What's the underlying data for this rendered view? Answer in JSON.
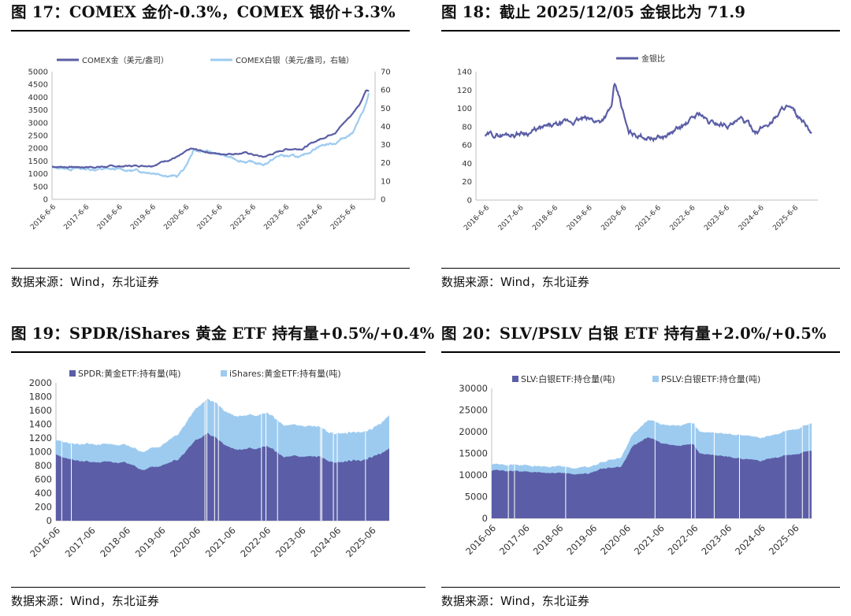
{
  "colors": {
    "dark": "#5B5EA6",
    "light": "#9DCBF0",
    "axis": "#bfbfbf",
    "text": "#333333"
  },
  "source_text": "数据来源：Wind，东北证券",
  "x_dates": [
    "2016-6-6",
    "2017-6-6",
    "2018-6-6",
    "2019-6-6",
    "2020-6-6",
    "2021-6-6",
    "2022-6-6",
    "2023-6-6",
    "2024-6-6",
    "2025-6-6"
  ],
  "x_months": [
    "2016-06",
    "2017-06",
    "2018-06",
    "2019-06",
    "2020-06",
    "2021-06",
    "2022-06",
    "2023-06",
    "2024-06",
    "2025-06"
  ],
  "charts": {
    "c17": {
      "title": "图 17：COMEX 金价-0.3%，COMEX 银价+3.3%",
      "legend": [
        "COMEX金（美元/盎司）",
        "COMEX白银（美元/盎司，右轴）"
      ]
    },
    "c18": {
      "title": "图 18：截止 2025/12/05 金银比为 71.9",
      "legend": [
        "金银比"
      ]
    },
    "c19": {
      "title": "图 19：SPDR/iShares 黄金 ETF 持有量+0.5%/+0.4%",
      "legend": [
        "SPDR:黄金ETF:持有量(吨)",
        "iShares:黄金ETF:持有量(吨)"
      ]
    },
    "c20": {
      "title": "图 20：SLV/PSLV 白银 ETF 持有量+2.0%/+0.5%",
      "legend": [
        "SLV:白银ETF:持仓量(吨)",
        "PSLV:白银ETF:持仓量(吨)"
      ]
    }
  },
  "chart_data": [
    {
      "type": "line",
      "title": "COMEX 金价-0.3%，COMEX 银价+3.3%",
      "x": [
        "2016-06",
        "2017-06",
        "2018-06",
        "2019-06",
        "2020-06",
        "2021-06",
        "2022-06",
        "2023-06",
        "2024-06",
        "2025-06",
        "2025-09",
        "2025-10",
        "2025-12"
      ],
      "series": [
        {
          "name": "COMEX金（美元/盎司）",
          "axis": "left",
          "values": [
            1280,
            1270,
            1280,
            1340,
            1760,
            1780,
            1830,
            1960,
            2330,
            3330,
            3800,
            4300,
            4240
          ]
        },
        {
          "name": "COMEX白银（美元/盎司，右轴）",
          "axis": "right",
          "values": [
            17.3,
            16.7,
            16.5,
            15.0,
            18.0,
            26.5,
            21.0,
            23.5,
            29.5,
            36.5,
            45.0,
            50.0,
            58.0
          ]
        }
      ],
      "ylim_left": [
        0,
        5000
      ],
      "yticks_left": [
        0,
        500,
        1000,
        1500,
        2000,
        2500,
        3000,
        3500,
        4000,
        4500,
        5000
      ],
      "ylim_right": [
        0,
        70
      ],
      "yticks_right": [
        0,
        10,
        20,
        30,
        40,
        50,
        60,
        70
      ]
    },
    {
      "type": "line",
      "title": "截止 2025/12/05 金银比为 71.9",
      "x": [
        "2016-06",
        "2017-06",
        "2018-06",
        "2019-06",
        "2020-03",
        "2020-06",
        "2020-09",
        "2021-06",
        "2022-06",
        "2022-09",
        "2023-06",
        "2024-06",
        "2025-04",
        "2025-06",
        "2025-12"
      ],
      "series": [
        {
          "name": "金银比",
          "values": [
            70,
            72,
            78,
            89,
            125,
            95,
            70,
            68,
            82,
            94,
            82,
            86,
            105,
            92,
            71.9
          ]
        }
      ],
      "ylim": [
        0,
        140
      ],
      "yticks": [
        0,
        20,
        40,
        60,
        80,
        100,
        120,
        140
      ]
    },
    {
      "type": "area",
      "stacked": true,
      "title": "SPDR/iShares 黄金 ETF 持有量+0.5%/+0.4%",
      "x": [
        "2016-06",
        "2017-06",
        "2018-06",
        "2019-06",
        "2020-06",
        "2020-10",
        "2021-06",
        "2022-06",
        "2023-06",
        "2024-06",
        "2025-06",
        "2025-12"
      ],
      "series": [
        {
          "name": "SPDR:黄金ETF:持有量(吨)",
          "values": [
            950,
            850,
            820,
            780,
            1150,
            1270,
            1040,
            1050,
            920,
            840,
            950,
            1045
          ]
        },
        {
          "name": "iShares:黄金ETF:持有量(吨)",
          "values": [
            220,
            250,
            250,
            280,
            420,
            510,
            480,
            490,
            460,
            410,
            400,
            480
          ]
        }
      ],
      "ylim": [
        0,
        2000
      ],
      "yticks": [
        0,
        200,
        400,
        600,
        800,
        1000,
        1200,
        1400,
        1600,
        1800,
        2000
      ]
    },
    {
      "type": "area",
      "stacked": true,
      "title": "SLV/PSLV 白银 ETF 持有量+2.0%/+0.5%",
      "x": [
        "2016-06",
        "2017-06",
        "2018-06",
        "2019-06",
        "2020-06",
        "2021-02",
        "2021-06",
        "2022-06",
        "2023-06",
        "2024-06",
        "2025-06",
        "2025-12"
      ],
      "series": [
        {
          "name": "SLV:白银ETF:持仓量(吨)",
          "values": [
            11000,
            10800,
            10500,
            11500,
            16000,
            18800,
            17000,
            15000,
            14000,
            13500,
            15000,
            15700
          ]
        },
        {
          "name": "PSLV:白银ETF:持仓量(吨)",
          "values": [
            1400,
            1500,
            1500,
            1500,
            2500,
            4000,
            4000,
            5000,
            5500,
            5000,
            5800,
            6300
          ]
        }
      ],
      "ylim": [
        0,
        30000
      ],
      "yticks": [
        0,
        5000,
        10000,
        15000,
        20000,
        25000,
        30000
      ]
    }
  ]
}
